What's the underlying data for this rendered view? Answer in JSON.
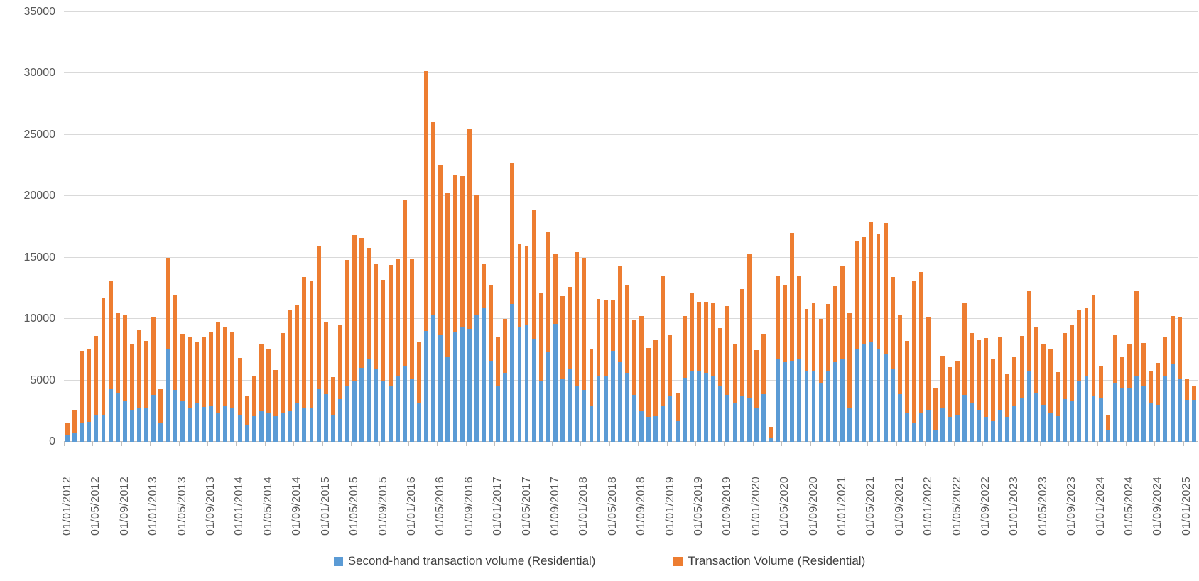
{
  "chart_data": {
    "type": "bar",
    "subtype": "stacked-column",
    "title": "",
    "xlabel": "",
    "ylabel": "",
    "ylim": [
      0,
      35000
    ],
    "y_ticks": [
      0,
      5000,
      10000,
      15000,
      20000,
      25000,
      30000,
      35000
    ],
    "grid": "horizontal",
    "legend_position": "bottom",
    "total_bars": 158,
    "months_per_label": 4,
    "x_start": "01/01/2012",
    "x_labels": [
      "01/01/2012",
      "01/05/2012",
      "01/09/2012",
      "01/01/2013",
      "01/05/2013",
      "01/09/2013",
      "01/01/2014",
      "01/05/2014",
      "01/09/2014",
      "01/01/2015",
      "01/05/2015",
      "01/09/2015",
      "01/01/2016",
      "01/05/2016",
      "01/09/2016",
      "01/01/2017",
      "01/05/2017",
      "01/09/2017",
      "01/01/2018",
      "01/05/2018",
      "01/09/2018",
      "01/01/2019",
      "01/05/2019",
      "01/09/2019",
      "01/01/2020",
      "01/05/2020",
      "01/09/2020",
      "01/01/2021",
      "01/05/2021",
      "01/09/2021",
      "01/01/2022",
      "01/05/2022",
      "01/09/2022",
      "01/01/2023",
      "01/05/2023",
      "01/09/2023",
      "01/01/2024",
      "01/05/2024",
      "01/09/2024",
      "01/01/2025"
    ],
    "series": [
      {
        "name": "Second-hand transaction volume (Residential)",
        "color": "#5b9bd5",
        "values": [
          540,
          700,
          1500,
          1600,
          2200,
          2200,
          4300,
          4000,
          3300,
          2600,
          2800,
          2800,
          3800,
          1500,
          7600,
          4200,
          3300,
          2800,
          3100,
          2850,
          2900,
          2400,
          2900,
          2700,
          2200,
          1400,
          2100,
          2500,
          2400,
          2100,
          2400,
          2500,
          3100,
          2700,
          2800,
          4300,
          3900,
          2200,
          3500,
          4500,
          4900,
          6000,
          6700,
          5900,
          5000,
          4500,
          5300,
          6200,
          5100,
          3100,
          9000,
          10300,
          8700,
          6900,
          8900,
          9400,
          9200,
          10300,
          10900,
          6600,
          4500,
          5600,
          11200,
          9300,
          9500,
          8400,
          4900,
          7300,
          9600,
          5100,
          5900,
          4500,
          4200,
          2900,
          5300,
          5300,
          7400,
          6500,
          5600,
          3800,
          2500,
          2000,
          2100,
          2900,
          3700,
          1700,
          5200,
          5800,
          5800,
          5600,
          5300,
          4500,
          3800,
          3100,
          3700,
          3600,
          2800,
          3900,
          300,
          6700,
          6500,
          6600,
          6700,
          5800,
          5800,
          4800,
          5800,
          6500,
          6700,
          2800,
          7500,
          8000,
          8100,
          7600,
          7100,
          5900,
          3900,
          2300,
          1500,
          2400,
          2600,
          1000,
          2700,
          2000,
          2200,
          3800,
          3100,
          2600,
          2000,
          1700,
          2600,
          2000,
          2900,
          3600,
          5800,
          4000,
          3000,
          2300,
          2100,
          3500,
          3300,
          5000,
          5400,
          3700,
          3600,
          1000,
          4800,
          4400,
          4400,
          5300,
          4500,
          3100,
          3000,
          5400,
          6300,
          5100,
          3400,
          3400
        ]
      },
      {
        "name": "Transaction Volume (Residential)",
        "color": "#ed7d31",
        "values": [
          990,
          1900,
          5900,
          5900,
          6400,
          9500,
          8800,
          6500,
          7000,
          5300,
          6300,
          5400,
          6300,
          2800,
          7400,
          7800,
          5500,
          5750,
          5000,
          5650,
          6050,
          7400,
          6470,
          6280,
          4640,
          2330,
          3290,
          5450,
          5200,
          3750,
          6440,
          8270,
          8040,
          10730,
          10340,
          11660,
          5890,
          3090,
          5970,
          10290,
          11930,
          10630,
          9120,
          8580,
          8200,
          9900,
          9650,
          13500,
          9850,
          5000,
          21200,
          15750,
          13820,
          13330,
          12880,
          12210,
          16270,
          9850,
          3620,
          6210,
          4090,
          4390,
          11460,
          6850,
          6420,
          10470,
          7230,
          9820,
          5690,
          6780,
          6710,
          10930,
          10780,
          4660,
          6340,
          6300,
          4100,
          7800,
          7170,
          6090,
          7740,
          5660,
          6240,
          10590,
          5060,
          2210,
          5040,
          6270,
          5610,
          5810,
          6050,
          4770,
          7260,
          4890,
          8720,
          11730,
          4660,
          4920,
          940,
          6790,
          6310,
          10420,
          6840,
          5030,
          5550,
          5190,
          5450,
          6210,
          7600,
          7710,
          8900,
          8700,
          9800,
          9300,
          10700,
          7500,
          6400,
          5900,
          11600,
          11400,
          7530,
          3410,
          4310,
          4050,
          4390,
          7550,
          5780,
          5700,
          6440,
          5080,
          5930,
          3520,
          4000,
          5020,
          6470,
          5300,
          4940,
          5250,
          3590,
          5350,
          6200,
          5720,
          5460,
          8230,
          2580,
          1180,
          3860,
          2460,
          3590,
          7020,
          3550,
          2610,
          3400,
          3170,
          3920,
          5100,
          1770,
          1150
        ]
      }
    ],
    "colors": {
      "gridline": "#d9d9d9",
      "axis_line": "#bfbfbf",
      "tick_text": "#595959",
      "legend_text": "#404040",
      "background": "#ffffff"
    }
  },
  "legend": {
    "item1": "Second-hand transaction volume (Residential)",
    "item2": "Transaction Volume (Residential)"
  }
}
